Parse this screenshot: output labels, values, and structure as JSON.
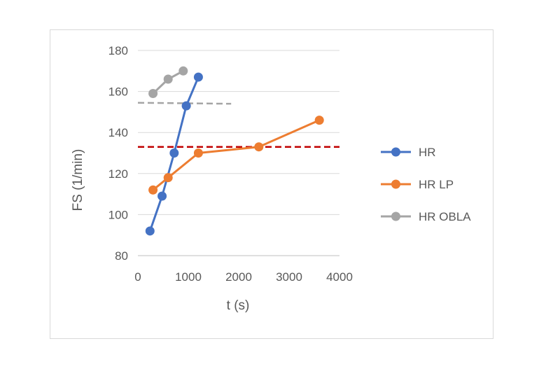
{
  "chart_data": {
    "type": "line",
    "title": "",
    "xlabel": "t (s)",
    "ylabel": "FS (1/min)",
    "xlim": [
      0,
      4000
    ],
    "ylim": [
      80,
      180
    ],
    "xticks": [
      0,
      1000,
      2000,
      3000,
      4000
    ],
    "yticks": [
      80,
      100,
      120,
      140,
      160,
      180
    ],
    "grid": "horizontal",
    "legend_position": "right",
    "series": [
      {
        "name": "HR",
        "color": "#4472c4",
        "points": [
          [
            240,
            92
          ],
          [
            480,
            109
          ],
          [
            720,
            130
          ],
          [
            960,
            153
          ],
          [
            1200,
            167
          ]
        ]
      },
      {
        "name": "HR LP",
        "color": "#ed7d31",
        "points": [
          [
            300,
            112
          ],
          [
            600,
            118
          ],
          [
            1200,
            130
          ],
          [
            2400,
            133
          ],
          [
            3600,
            146
          ]
        ]
      },
      {
        "name": "HR OBLA",
        "color": "#a5a5a5",
        "points": [
          [
            300,
            159
          ],
          [
            600,
            166
          ],
          [
            900,
            170
          ]
        ]
      }
    ],
    "reference_lines": [
      {
        "color": "#c00000",
        "y": 133,
        "x_range": [
          0,
          4000
        ],
        "style": "dashed"
      },
      {
        "color": "#a5a5a5",
        "y_range": [
          154.5,
          154
        ],
        "x_range": [
          0,
          1850
        ],
        "style": "dashed"
      }
    ]
  }
}
